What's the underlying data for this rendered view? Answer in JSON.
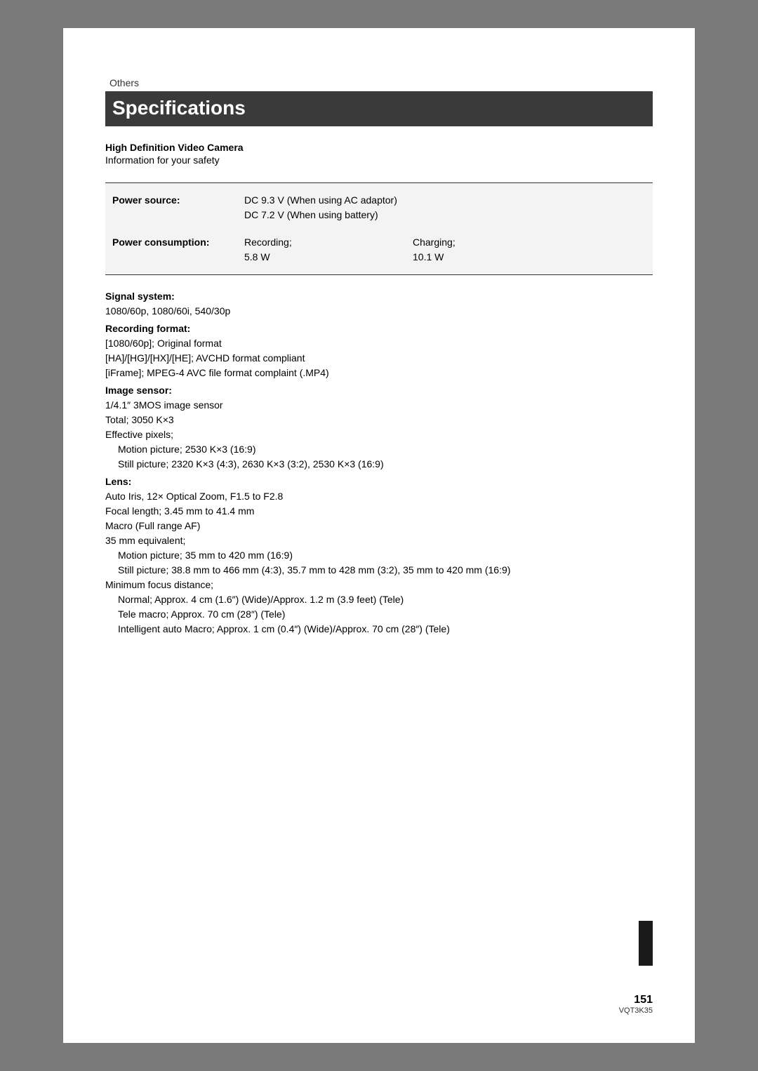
{
  "breadcrumb": "Others",
  "title": "Specifications",
  "subtitle_bold": "High Definition Video Camera",
  "subtitle_plain": "Information for your safety",
  "box": {
    "power_source": {
      "label": "Power source:",
      "line1": "DC 9.3 V (When using AC adaptor)",
      "line2": "DC 7.2 V (When using battery)"
    },
    "power_consumption": {
      "label": "Power consumption:",
      "col1_a": "Recording;",
      "col1_b": "5.8 W",
      "col2_a": "Charging;",
      "col2_b": "10.1 W"
    }
  },
  "signal_system": {
    "heading": "Signal system:",
    "line1": "1080/60p, 1080/60i, 540/30p"
  },
  "recording_format": {
    "heading": "Recording format:",
    "line1": "[1080/60p]; Original format",
    "line2": "[HA]/[HG]/[HX]/[HE]; AVCHD format compliant",
    "line3": "[iFrame]; MPEG-4 AVC file format complaint (.MP4)"
  },
  "image_sensor": {
    "heading": "Image sensor:",
    "line1": "1/4.1″ 3MOS image sensor",
    "line2": "Total; 3050 K×3",
    "line3": "Effective pixels;",
    "line4": "Motion picture; 2530 K×3 (16:9)",
    "line5": "Still picture; 2320 K×3 (4:3), 2630 K×3 (3:2), 2530 K×3 (16:9)"
  },
  "lens": {
    "heading": "Lens:",
    "line1": "Auto Iris, 12× Optical Zoom, F1.5 to F2.8",
    "line2": "Focal length; 3.45 mm to 41.4 mm",
    "line3": "Macro (Full range AF)",
    "line4": "35 mm equivalent;",
    "line5": "Motion picture; 35 mm to 420 mm (16:9)",
    "line6": "Still picture; 38.8 mm to 466 mm (4:3), 35.7 mm to 428 mm (3:2), 35 mm to 420 mm (16:9)",
    "line7": "Minimum focus distance;",
    "line8": "Normal; Approx. 4 cm (1.6″) (Wide)/Approx. 1.2 m (3.9 feet) (Tele)",
    "line9": "Tele macro; Approx. 70 cm (28″) (Tele)",
    "line10": "Intelligent auto Macro; Approx. 1 cm (0.4″) (Wide)/Approx. 70 cm (28″) (Tele)"
  },
  "page_number": "151",
  "doc_code": "VQT3K35"
}
